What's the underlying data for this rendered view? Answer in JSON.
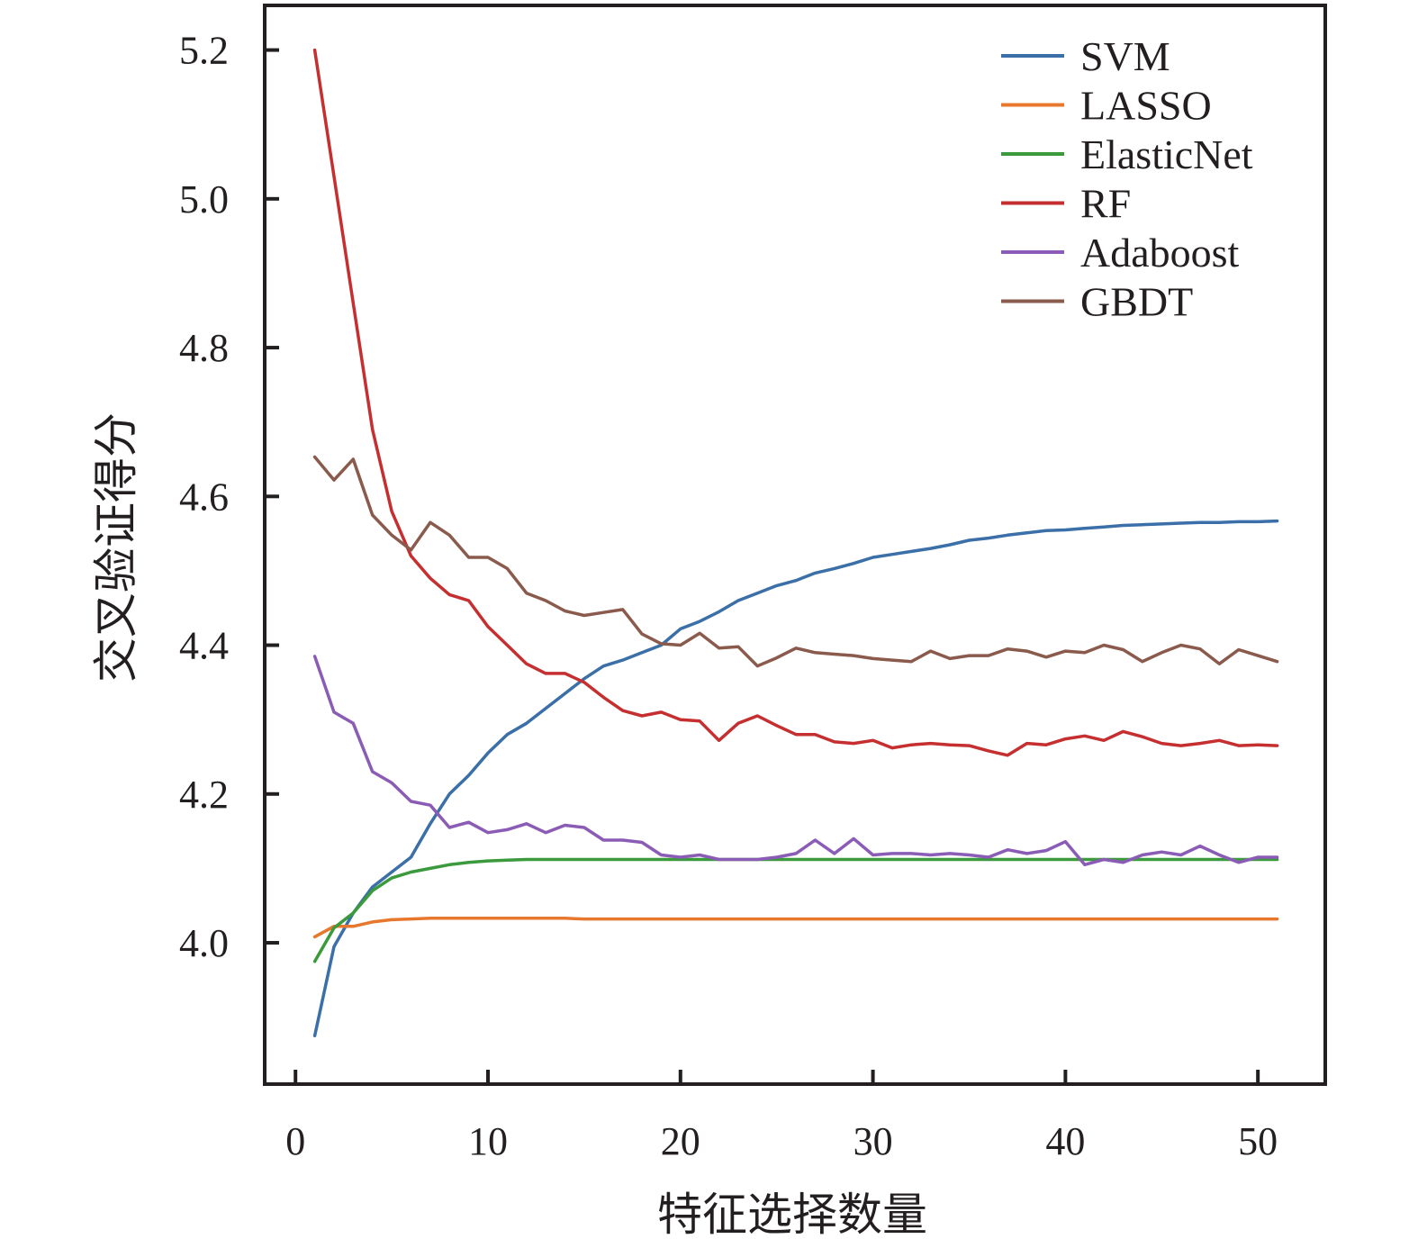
{
  "chart_data": {
    "type": "line",
    "title": "",
    "xlabel": "特征选择数量",
    "ylabel": "交叉验证得分",
    "xlim": [
      -1.6,
      53.5
    ],
    "ylim": [
      3.81,
      5.26
    ],
    "xticks": [
      0,
      10,
      20,
      30,
      40,
      50
    ],
    "yticks": [
      4.0,
      4.2,
      4.4,
      4.6,
      4.8,
      5.0,
      5.2
    ],
    "ytick_labels": [
      "4.0",
      "4.2",
      "4.4",
      "4.6",
      "4.8",
      "5.0",
      "5.2"
    ],
    "grid": false,
    "legend_position": "top-right",
    "x": [
      1,
      2,
      3,
      4,
      5,
      6,
      7,
      8,
      9,
      10,
      11,
      12,
      13,
      14,
      15,
      16,
      17,
      18,
      19,
      20,
      21,
      22,
      23,
      24,
      25,
      26,
      27,
      28,
      29,
      30,
      31,
      32,
      33,
      34,
      35,
      36,
      37,
      38,
      39,
      40,
      41,
      42,
      43,
      44,
      45,
      46,
      47,
      48,
      49,
      50,
      51
    ],
    "series": [
      {
        "name": "SVM",
        "color": "#3b6fa8",
        "values": [
          3.875,
          3.995,
          4.04,
          4.075,
          4.095,
          4.115,
          4.16,
          4.2,
          4.225,
          4.255,
          4.28,
          4.295,
          4.315,
          4.335,
          4.355,
          4.372,
          4.38,
          4.39,
          4.4,
          4.422,
          4.432,
          4.445,
          4.46,
          4.47,
          4.48,
          4.487,
          4.497,
          4.503,
          4.51,
          4.518,
          4.522,
          4.526,
          4.53,
          4.535,
          4.541,
          4.544,
          4.548,
          4.551,
          4.554,
          4.555,
          4.557,
          4.559,
          4.561,
          4.562,
          4.563,
          4.564,
          4.565,
          4.565,
          4.566,
          4.566,
          4.567
        ]
      },
      {
        "name": "LASSO",
        "color": "#e8772e",
        "values": [
          4.008,
          4.022,
          4.022,
          4.028,
          4.031,
          4.032,
          4.033,
          4.033,
          4.033,
          4.033,
          4.033,
          4.033,
          4.033,
          4.033,
          4.032,
          4.032,
          4.032,
          4.032,
          4.032,
          4.032,
          4.032,
          4.032,
          4.032,
          4.032,
          4.032,
          4.032,
          4.032,
          4.032,
          4.032,
          4.032,
          4.032,
          4.032,
          4.032,
          4.032,
          4.032,
          4.032,
          4.032,
          4.032,
          4.032,
          4.032,
          4.032,
          4.032,
          4.032,
          4.032,
          4.032,
          4.032,
          4.032,
          4.032,
          4.032,
          4.032,
          4.032
        ]
      },
      {
        "name": "ElasticNet",
        "color": "#3a9a3c",
        "values": [
          3.975,
          4.02,
          4.04,
          4.07,
          4.087,
          4.095,
          4.1,
          4.105,
          4.108,
          4.11,
          4.111,
          4.112,
          4.112,
          4.112,
          4.112,
          4.112,
          4.112,
          4.112,
          4.112,
          4.112,
          4.112,
          4.112,
          4.112,
          4.112,
          4.112,
          4.112,
          4.112,
          4.112,
          4.112,
          4.112,
          4.112,
          4.112,
          4.112,
          4.112,
          4.112,
          4.112,
          4.112,
          4.112,
          4.112,
          4.112,
          4.112,
          4.112,
          4.112,
          4.112,
          4.112,
          4.112,
          4.112,
          4.112,
          4.112,
          4.112,
          4.112
        ]
      },
      {
        "name": "RF",
        "color": "#c62f30",
        "values": [
          5.2,
          5.03,
          4.86,
          4.69,
          4.58,
          4.52,
          4.49,
          4.468,
          4.46,
          4.425,
          4.4,
          4.375,
          4.362,
          4.362,
          4.35,
          4.33,
          4.312,
          4.305,
          4.31,
          4.3,
          4.298,
          4.272,
          4.295,
          4.305,
          4.292,
          4.28,
          4.28,
          4.27,
          4.268,
          4.272,
          4.262,
          4.266,
          4.268,
          4.266,
          4.265,
          4.258,
          4.252,
          4.268,
          4.266,
          4.274,
          4.278,
          4.272,
          4.284,
          4.277,
          4.268,
          4.265,
          4.268,
          4.272,
          4.265,
          4.266,
          4.265
        ]
      },
      {
        "name": "Adaboost",
        "color": "#8b5cb5",
        "values": [
          4.385,
          4.31,
          4.295,
          4.23,
          4.215,
          4.19,
          4.185,
          4.155,
          4.162,
          4.148,
          4.152,
          4.16,
          4.148,
          4.158,
          4.155,
          4.138,
          4.138,
          4.135,
          4.118,
          4.115,
          4.118,
          4.112,
          4.112,
          4.112,
          4.115,
          4.12,
          4.138,
          4.12,
          4.14,
          4.118,
          4.12,
          4.12,
          4.118,
          4.12,
          4.118,
          4.115,
          4.125,
          4.12,
          4.124,
          4.136,
          4.105,
          4.112,
          4.108,
          4.118,
          4.122,
          4.118,
          4.13,
          4.118,
          4.108,
          4.115,
          4.115
        ]
      },
      {
        "name": "GBDT",
        "color": "#8a5a4c",
        "values": [
          4.653,
          4.622,
          4.65,
          4.575,
          4.548,
          4.528,
          4.565,
          4.548,
          4.518,
          4.518,
          4.503,
          4.47,
          4.46,
          4.446,
          4.44,
          4.444,
          4.448,
          4.415,
          4.402,
          4.4,
          4.416,
          4.396,
          4.398,
          4.372,
          4.383,
          4.396,
          4.39,
          4.388,
          4.386,
          4.382,
          4.38,
          4.378,
          4.392,
          4.382,
          4.386,
          4.386,
          4.395,
          4.392,
          4.384,
          4.392,
          4.39,
          4.4,
          4.394,
          4.378,
          4.39,
          4.4,
          4.395,
          4.375,
          4.394,
          4.386,
          4.378
        ]
      }
    ]
  }
}
